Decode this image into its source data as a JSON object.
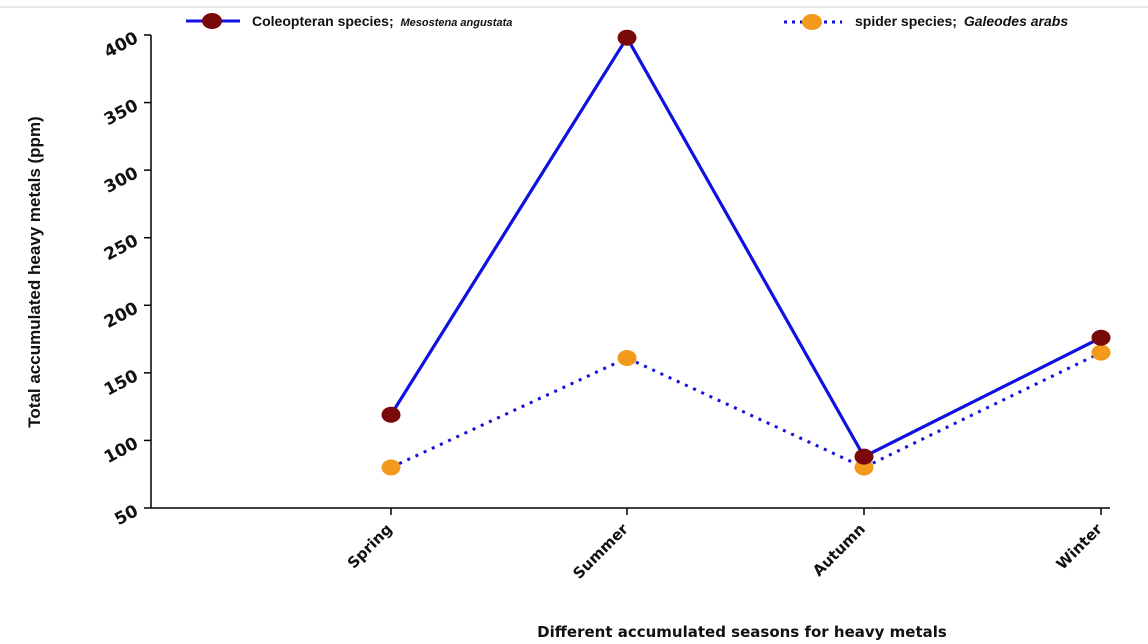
{
  "chart_data": {
    "type": "line",
    "categories": [
      "Spring",
      "Summer",
      "Autumn",
      "Winter"
    ],
    "series": [
      {
        "name_prefix": "Coleopteran species;",
        "name_species": "Mesostena angustata",
        "values": [
          119,
          398,
          88,
          176
        ],
        "line_color": "#1010e0",
        "marker_color": "#7a0a0a",
        "style": "solid"
      },
      {
        "name_prefix": "spider species;",
        "name_species": "Galeodes arabs",
        "values": [
          80,
          161,
          80,
          165
        ],
        "line_color": "#1010e0",
        "marker_color": "#f39a1c",
        "style": "dotted"
      }
    ],
    "ylabel": "Total accumulated heavy metals (ppm)",
    "xlabel": "Different accumulated seasons for heavy metals",
    "ylim": [
      50,
      400
    ],
    "yticks": [
      50,
      100,
      150,
      200,
      250,
      300,
      350,
      400
    ],
    "legend_position": "top",
    "grid": false
  }
}
